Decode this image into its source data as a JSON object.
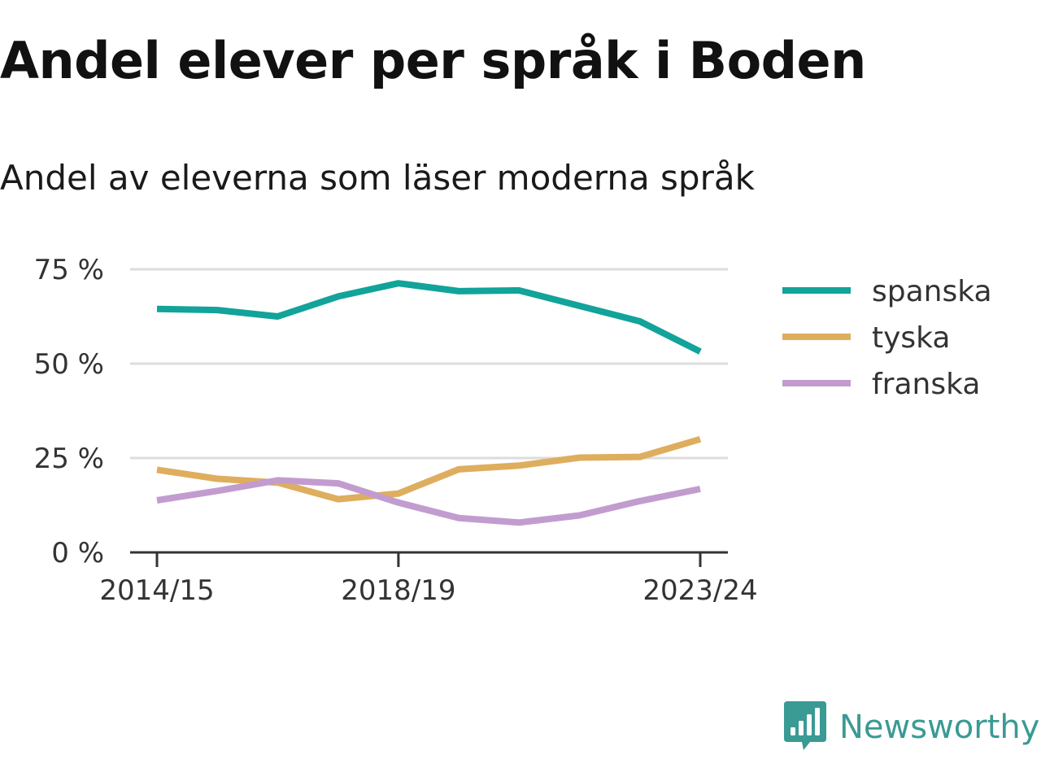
{
  "header": {
    "title": "Andel elever per språk i Boden",
    "subtitle": "Andel av eleverna som läser moderna språk"
  },
  "brand": {
    "name": "Newsworthy",
    "icon": "bar-chart-speech-bubble-icon",
    "color": "#3a9a94"
  },
  "chart_data": {
    "type": "line",
    "title": "Andel elever per språk i Boden",
    "subtitle": "Andel av eleverna som läser moderna språk",
    "xlabel": "",
    "ylabel": "",
    "x": [
      "2014/15",
      "2015/16",
      "2016/17",
      "2017/18",
      "2018/19",
      "2019/20",
      "2020/21",
      "2021/22",
      "2022/23",
      "2023/24"
    ],
    "x_tick_labels": [
      "2014/15",
      "2018/19",
      "2023/24"
    ],
    "y_ticks": [
      0,
      25,
      50,
      75
    ],
    "y_tick_labels": [
      "0 %",
      "25 %",
      "50 %",
      "75 %"
    ],
    "ylim": [
      0,
      75
    ],
    "grid": "horizontal",
    "legend_position": "right",
    "series": [
      {
        "name": "spanska",
        "color": "#12a39a",
        "values": [
          64.5,
          64.2,
          62.5,
          67.8,
          71.3,
          69.2,
          69.4,
          65.3,
          61.2,
          53.2
        ]
      },
      {
        "name": "tyska",
        "color": "#deae5e",
        "values": [
          21.9,
          19.5,
          18.5,
          14.1,
          15.6,
          22.0,
          23.0,
          25.1,
          25.3,
          30.0
        ]
      },
      {
        "name": "franska",
        "color": "#c29ccf",
        "values": [
          13.8,
          16.3,
          19.1,
          18.3,
          13.2,
          9.1,
          7.9,
          9.8,
          13.6,
          16.8
        ]
      }
    ]
  }
}
